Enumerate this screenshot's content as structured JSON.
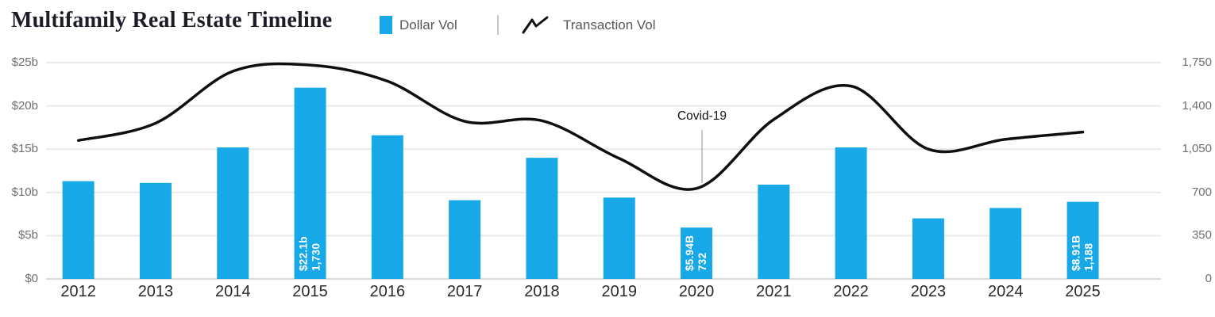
{
  "chart_data": {
    "type": "bar+line",
    "title": "Multifamily Real Estate Timeline",
    "categories": [
      "2012",
      "2013",
      "2014",
      "2015",
      "2016",
      "2017",
      "2018",
      "2019",
      "2020",
      "2021",
      "2022",
      "2023",
      "2024",
      "2025"
    ],
    "series": [
      {
        "name": "Dollar Vol",
        "type": "bar",
        "axis": "left",
        "unit": "$ billions",
        "color": "#17a8e8",
        "values": [
          11.3,
          11.1,
          15.2,
          22.1,
          16.6,
          9.1,
          14.0,
          9.4,
          5.94,
          10.9,
          15.2,
          7.0,
          8.2,
          8.91
        ]
      },
      {
        "name": "Transaction Vol",
        "type": "line",
        "axis": "right",
        "unit": "transactions",
        "color": "#0f0f0f",
        "values": [
          1120,
          1260,
          1680,
          1730,
          1600,
          1275,
          1280,
          975,
          732,
          1290,
          1560,
          1050,
          1130,
          1188
        ]
      }
    ],
    "left_axis": {
      "min": 0,
      "max": 25,
      "tick_labels": [
        "$0",
        "$5b",
        "$10b",
        "$15b",
        "$20b",
        "$25b"
      ]
    },
    "right_axis": {
      "min": 0,
      "max": 1750,
      "tick_labels": [
        "0",
        "350",
        "700",
        "1,050",
        "1,400",
        "1,750"
      ]
    },
    "bar_value_labels": [
      {
        "category": "2015",
        "dollar": "$22.1b",
        "transactions": "1,730"
      },
      {
        "category": "2020",
        "dollar": "$5.94B",
        "transactions": "732"
      },
      {
        "category": "2025",
        "dollar": "$8.91B",
        "transactions": "1,188"
      }
    ],
    "annotation": {
      "text": "Covid-19",
      "category": "2020"
    },
    "grid": "horizontal gridlines on",
    "legend_position": "top",
    "styles": {
      "bar_color": "#17a8e8",
      "line_color": "#0f0f0f",
      "gridline_color": "#e9e9e9",
      "baseline_color": "#d9d9d9",
      "axis_text_color": "#6d6e71",
      "bar_label_text_color": "#ffffff"
    }
  }
}
